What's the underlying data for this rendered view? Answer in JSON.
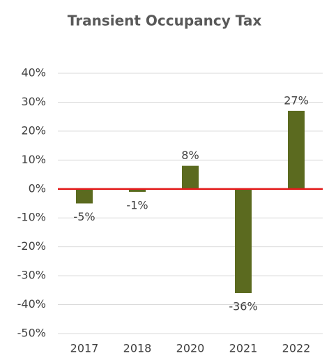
{
  "chart_data": {
    "type": "bar",
    "title": "Transient Occupancy Tax",
    "categories": [
      "2017",
      "2018",
      "2020",
      "2021",
      "2022"
    ],
    "values": [
      -5,
      -1,
      8,
      -36,
      27
    ],
    "value_labels": [
      "-5%",
      "-1%",
      "8%",
      "-36%",
      "27%"
    ],
    "color": "#5b6a1f",
    "zero_line_color": "#e31c1c",
    "ylim": [
      -50,
      40
    ],
    "yticks": [
      {
        "value": -50,
        "label": "-50%"
      },
      {
        "value": -40,
        "label": "-40%"
      },
      {
        "value": -30,
        "label": "-30%"
      },
      {
        "value": -20,
        "label": "-20%"
      },
      {
        "value": -10,
        "label": "-10%"
      },
      {
        "value": 0,
        "label": "0%"
      },
      {
        "value": 10,
        "label": "10%"
      },
      {
        "value": 20,
        "label": "20%"
      },
      {
        "value": 30,
        "label": "30%"
      },
      {
        "value": 40,
        "label": "40%"
      }
    ],
    "grid": true
  }
}
